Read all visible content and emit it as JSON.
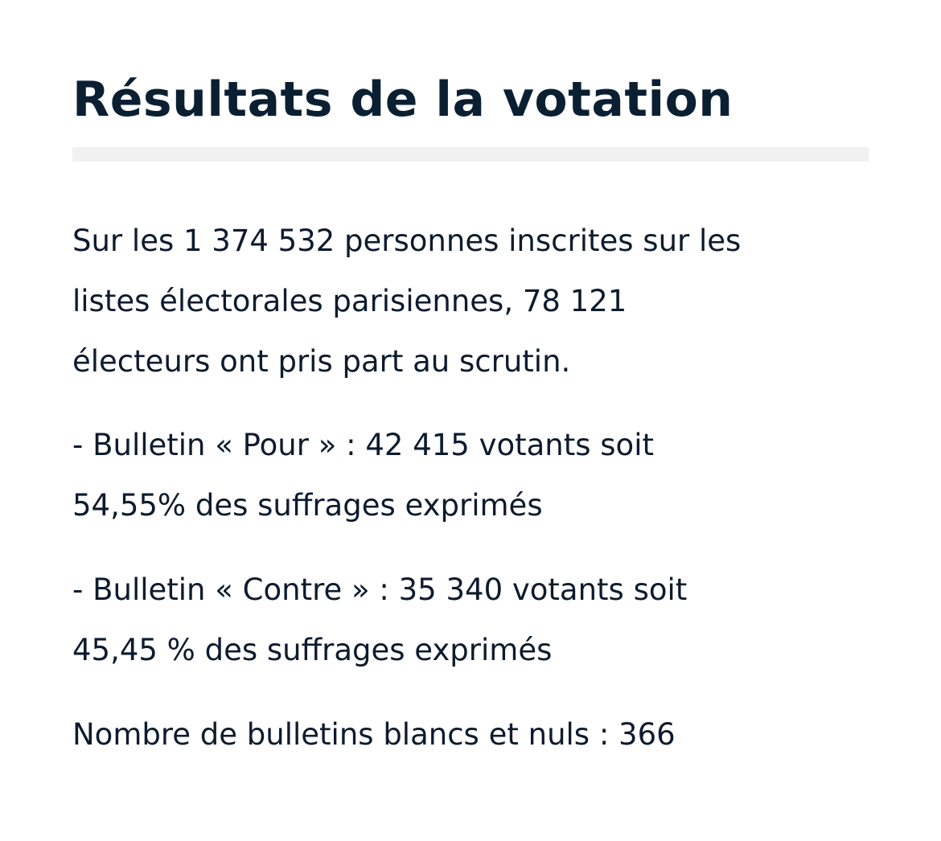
{
  "title": "Résultats de la votation",
  "intro": {
    "line1": "Sur les 1 374 532 personnes inscrites sur les",
    "line2": "listes électorales parisiennes, 78 121",
    "line3": "électeurs ont pris part au scrutin."
  },
  "pour": {
    "line1": "- Bulletin « Pour » : 42 415 votants soit",
    "line2": "54,55% des suffrages exprimés"
  },
  "contre": {
    "line1": "- Bulletin « Contre » : 35 340 votants soit",
    "line2": "45,45 % des suffrages exprimés"
  },
  "blancs": {
    "line1": "Nombre de bulletins blancs et nuls : 366"
  }
}
